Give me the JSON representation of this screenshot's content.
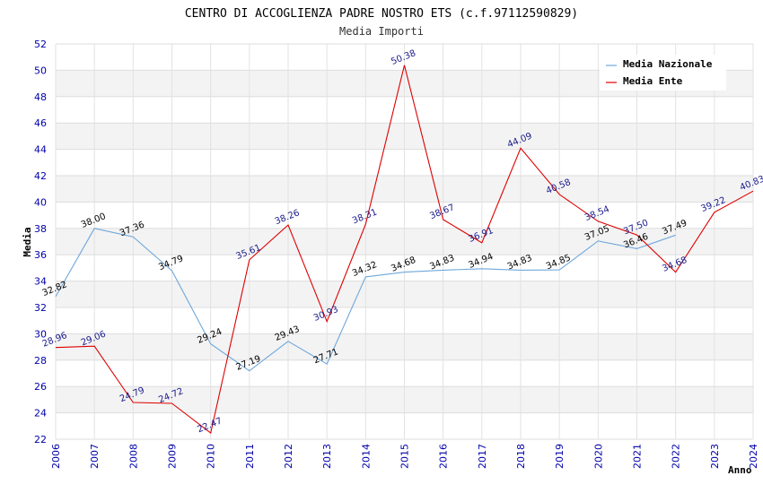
{
  "chart_data": {
    "type": "line",
    "title": "CENTRO DI ACCOGLIENZA PADRE NOSTRO ETS (c.f.97112590829)",
    "subtitle": "Media Importi",
    "xlabel": "Anno",
    "ylabel": "Media",
    "ylim": [
      22,
      52
    ],
    "ytick_step": 2,
    "grid": true,
    "legend_position": "top-right",
    "x": [
      "2006",
      "2007",
      "2008",
      "2009",
      "2010",
      "2011",
      "2012",
      "2013",
      "2014",
      "2015",
      "2016",
      "2017",
      "2018",
      "2019",
      "2020",
      "2021",
      "2022",
      "2023",
      "2024"
    ],
    "series": [
      {
        "name": "Media Nazionale",
        "color": "#6fa8dc",
        "values": [
          32.82,
          38.0,
          37.36,
          34.79,
          29.24,
          27.19,
          29.43,
          27.71,
          34.32,
          34.68,
          34.83,
          34.94,
          34.83,
          34.85,
          37.05,
          36.46,
          37.49,
          null,
          null
        ],
        "labels": [
          "32.82",
          "38.00",
          "37.36",
          "34.79",
          "29.24",
          "27.19",
          "29.43",
          "27.71",
          "34.32",
          "34.68",
          "34.83",
          "34.94",
          "34.83",
          "34.85",
          "37.05",
          "36.46",
          "37.49",
          "",
          ""
        ]
      },
      {
        "name": "Media Ente",
        "color": "#dd0000",
        "values": [
          28.96,
          29.06,
          24.79,
          24.72,
          22.47,
          35.61,
          38.26,
          30.93,
          38.31,
          50.38,
          38.67,
          36.91,
          44.09,
          40.58,
          38.54,
          37.5,
          34.68,
          39.22,
          40.83
        ],
        "labels": [
          "28.96",
          "29.06",
          "24.79",
          "24.72",
          "22.47",
          "35.61",
          "38.26",
          "30.93",
          "38.31",
          "50.38",
          "38.67",
          "36.91",
          "44.09",
          "40.58",
          "38.54",
          "37.50",
          "34.68",
          "39.22",
          "40.83"
        ]
      }
    ]
  }
}
